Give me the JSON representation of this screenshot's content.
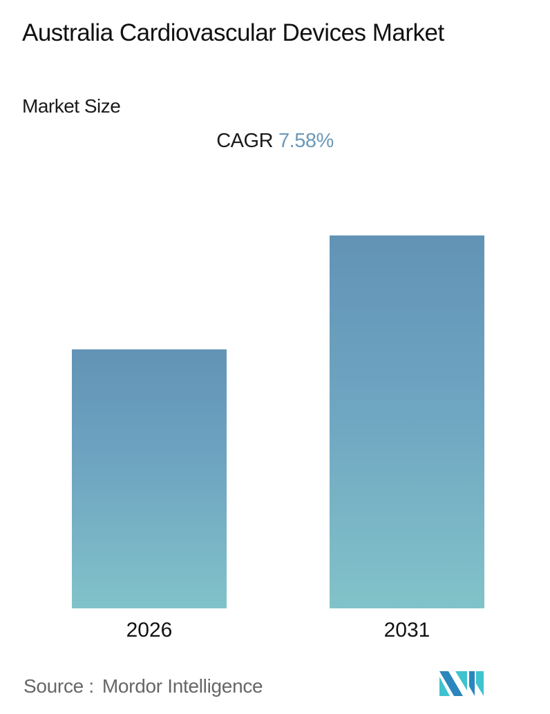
{
  "header": {
    "title": "Australia Cardiovascular Devices Market",
    "subtitle": "Market Size"
  },
  "cagr": {
    "label": "CAGR",
    "value": "7.58%"
  },
  "footer": {
    "source_label": "Source :",
    "source_name": "Mordor Intelligence",
    "logo_icon": "mordor-intelligence-logo-icon"
  },
  "colors": {
    "bar_top": "#6293b6",
    "bar_bottom": "#81c3c9",
    "cagr_value": "#6a98b8",
    "logo_dark": "#2a86bd",
    "logo_light": "#3ec3cf"
  },
  "chart_data": {
    "type": "bar",
    "title": "Australia Cardiovascular Devices Market",
    "subtitle": "Market Size",
    "annotation": "CAGR 7.58%",
    "categories": [
      "2026",
      "2031"
    ],
    "values": [
      100,
      144.1
    ],
    "value_note": "Relative bar heights (2026 indexed to 100); no numeric data labels shown",
    "xlabel": "",
    "ylabel": "",
    "ylim": [
      0,
      144.1
    ],
    "grid": false,
    "legend": null,
    "source": "Mordor Intelligence"
  }
}
